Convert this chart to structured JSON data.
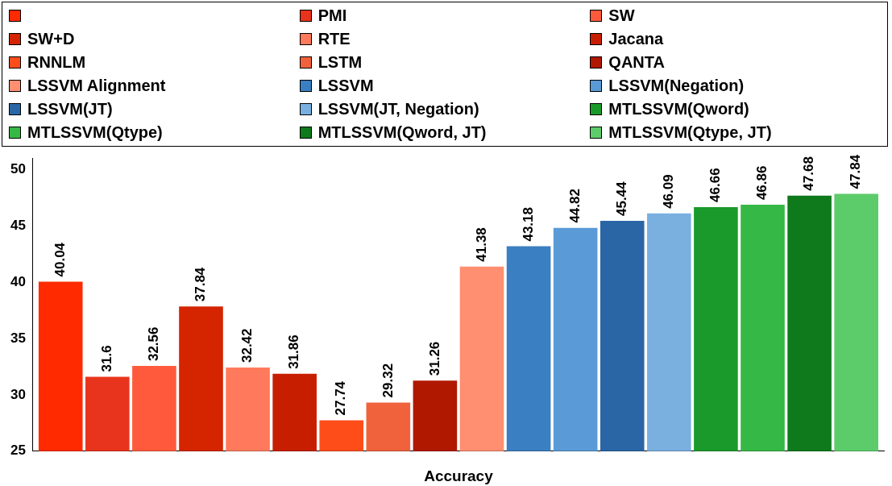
{
  "chart_data": {
    "type": "bar",
    "xlabel": "Accuracy",
    "categories": [
      null
    ],
    "ylim": [
      25,
      51
    ],
    "yticks": [
      25,
      30,
      35,
      40,
      45,
      50
    ],
    "grid": false,
    "legend": "top",
    "data_labels": true,
    "series": [
      {
        "color": "#ff2a00",
        "values": [
          40.04
        ]
      },
      {
        "name": "PMI",
        "color": "#e8341c",
        "values": [
          31.6
        ]
      },
      {
        "name": "SW",
        "color": "#ff5a3c",
        "values": [
          32.56
        ]
      },
      {
        "name": "SW+D",
        "color": "#d42400",
        "values": [
          37.84
        ]
      },
      {
        "name": "RTE",
        "color": "#ff7a5c",
        "values": [
          32.42
        ]
      },
      {
        "name": "Jacana",
        "color": "#c81e00",
        "values": [
          31.86
        ]
      },
      {
        "name": "RNNLM",
        "color": "#ff4d1a",
        "values": [
          27.74
        ]
      },
      {
        "name": "LSTM",
        "color": "#f0623c",
        "values": [
          29.32
        ]
      },
      {
        "name": "QANTA",
        "color": "#b01800",
        "values": [
          31.26
        ]
      },
      {
        "name": "LSSVM Alignment",
        "color": "#ff8f70",
        "values": [
          41.38
        ]
      },
      {
        "name": "LSSVM",
        "color": "#3a7fc1",
        "values": [
          43.18
        ]
      },
      {
        "name": "LSSVM(Negation)",
        "color": "#5a9ad6",
        "values": [
          44.82
        ]
      },
      {
        "name": "LSSVM(JT)",
        "color": "#2a66a6",
        "values": [
          45.44
        ]
      },
      {
        "name": "LSSVM(JT, Negation)",
        "color": "#7ab0e0",
        "values": [
          46.09
        ]
      },
      {
        "name": "MTLSSVM(Qword)",
        "color": "#1a9a2a",
        "values": [
          46.66
        ]
      },
      {
        "name": "MTLSSVM(Qtype)",
        "color": "#36b846",
        "values": [
          46.86
        ]
      },
      {
        "name": "MTLSSVM(Qword, JT)",
        "color": "#0f7a1c",
        "values": [
          47.68
        ]
      },
      {
        "name": "MTLSSVM(Qtype, JT)",
        "color": "#5ccc6a",
        "values": [
          47.84
        ]
      }
    ]
  }
}
